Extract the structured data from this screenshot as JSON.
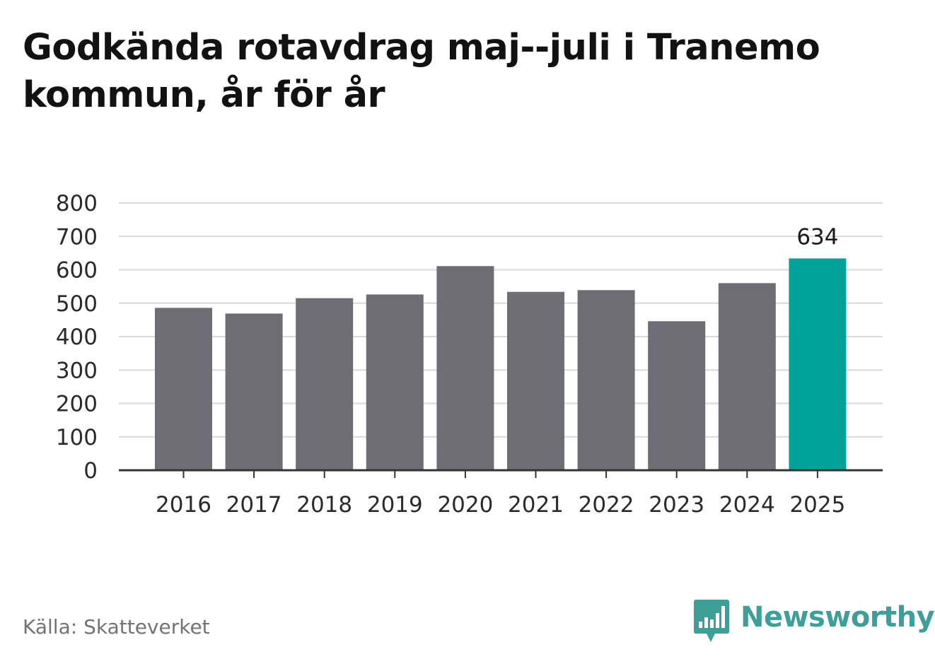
{
  "title": "Godkända rotavdrag maj--juli i Tranemo kommun, år för år",
  "source": "Källa: Skatteverket",
  "brand": {
    "name": "Newsworthy",
    "icon": "newsworthy-logo-icon",
    "color": "#3e9f98"
  },
  "colors": {
    "bar": "#6e6d73",
    "highlight": "#00a39a",
    "grid": "#d9d9d9",
    "axis": "#333333"
  },
  "chart_data": {
    "type": "bar",
    "categories": [
      "2016",
      "2017",
      "2018",
      "2019",
      "2020",
      "2021",
      "2022",
      "2023",
      "2024",
      "2025"
    ],
    "values": [
      486,
      469,
      515,
      526,
      611,
      534,
      539,
      446,
      560,
      634
    ],
    "highlight_index": 9,
    "data_labels": [
      {
        "index": 9,
        "text": "634"
      }
    ],
    "yticks": [
      "0",
      "100",
      "200",
      "300",
      "400",
      "500",
      "600",
      "700",
      "800"
    ],
    "ylim": [
      0,
      800
    ],
    "grid": true,
    "legend": "none"
  }
}
